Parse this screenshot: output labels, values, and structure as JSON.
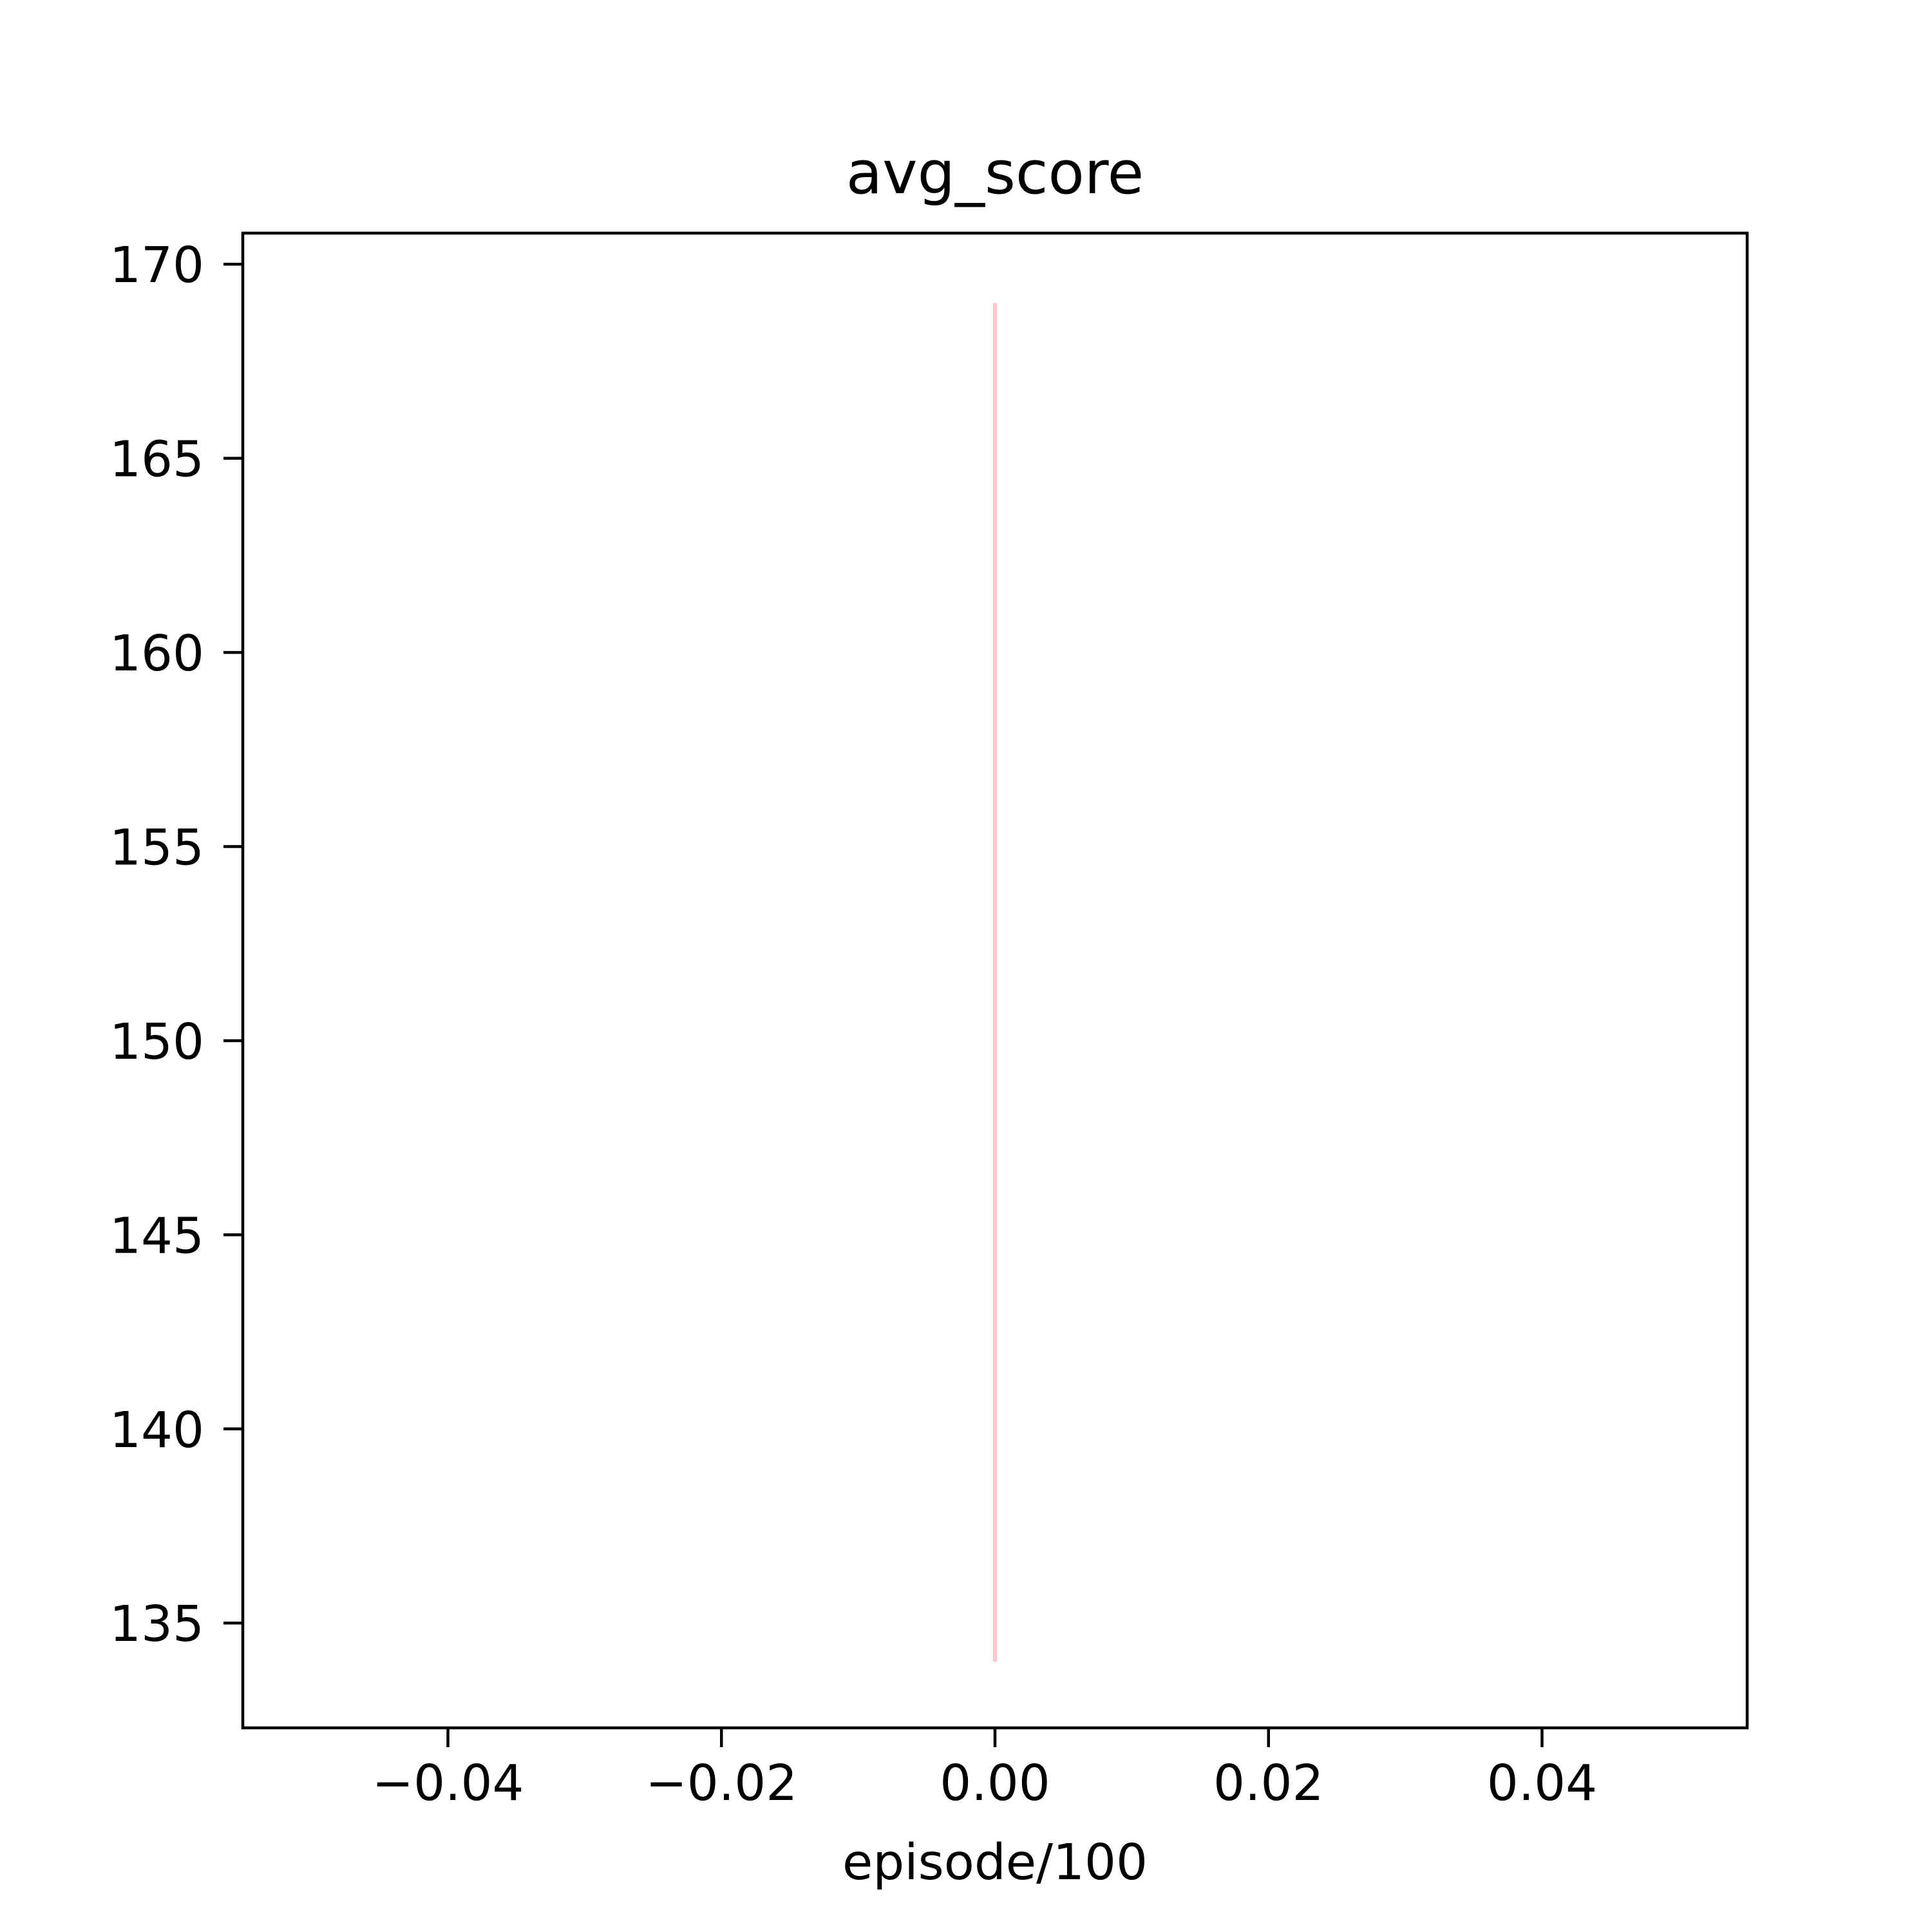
{
  "chart_data": {
    "type": "line",
    "title": "avg_score",
    "xlabel": "episode/100",
    "ylabel": "",
    "xlim": [
      -0.055,
      0.055
    ],
    "ylim": [
      132.3,
      170.8
    ],
    "x_ticks": [
      -0.04,
      -0.02,
      0.0,
      0.02,
      0.04
    ],
    "x_tick_labels": [
      "−0.04",
      "−0.02",
      "0.00",
      "0.02",
      "0.04"
    ],
    "y_ticks": [
      135,
      140,
      145,
      150,
      155,
      160,
      165,
      170
    ],
    "y_tick_labels": [
      "135",
      "140",
      "145",
      "150",
      "155",
      "160",
      "165",
      "170"
    ],
    "grid": false,
    "series": [
      {
        "color": "#f9c9cb",
        "x": [
          0.0,
          0.0
        ],
        "y": [
          134.0,
          169.0
        ]
      }
    ]
  }
}
